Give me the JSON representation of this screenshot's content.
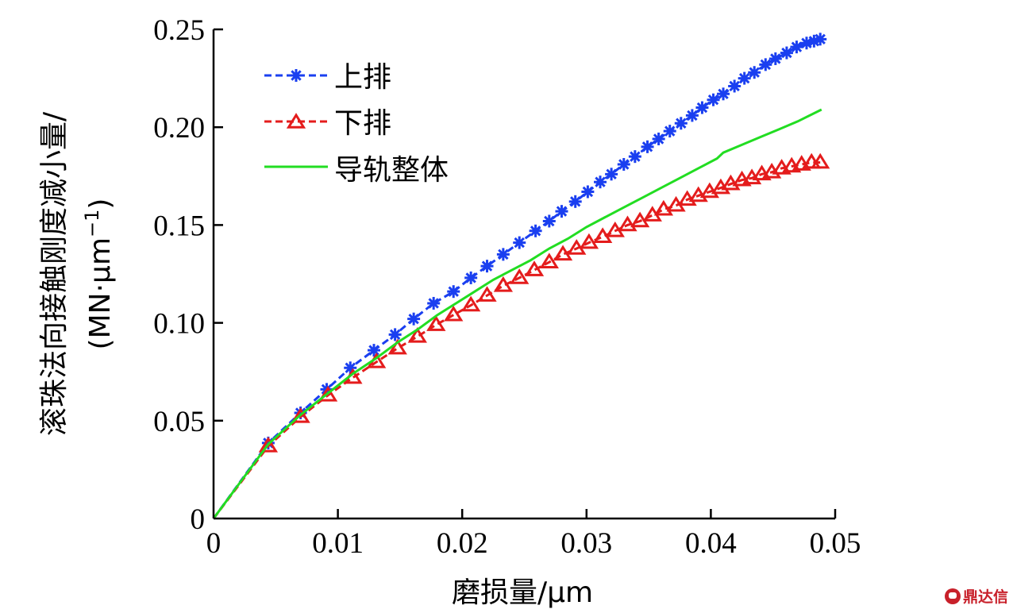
{
  "chart_data": {
    "type": "line",
    "title": "",
    "xlabel": "磨损量/μm",
    "ylabel_line1": "滚珠法向接触刚度减小量/",
    "ylabel_line2_prefix": "(MN·μm",
    "ylabel_line2_sup": "−1",
    "ylabel_line2_suffix": ")",
    "xlim": [
      0,
      0.05
    ],
    "ylim": [
      0,
      0.25
    ],
    "x_ticks": [
      0,
      0.01,
      0.02,
      0.03,
      0.04,
      0.05
    ],
    "x_tick_labels": [
      "0",
      "0.01",
      "0.02",
      "0.03",
      "0.04",
      "0.05"
    ],
    "y_ticks": [
      0,
      0.05,
      0.1,
      0.15,
      0.2,
      0.25
    ],
    "y_tick_labels": [
      "0",
      "0.05",
      "0.10",
      "0.15",
      "0.20",
      "0.25"
    ],
    "grid": false,
    "legend_position": "top-left",
    "series": [
      {
        "name": "上排",
        "color": "#1a3ff0",
        "line_style": "dashed",
        "marker": "asterisk",
        "x": [
          0,
          0.0044,
          0.007,
          0.0091,
          0.011,
          0.0129,
          0.0146,
          0.0161,
          0.0177,
          0.0193,
          0.0207,
          0.022,
          0.0233,
          0.0246,
          0.0259,
          0.027,
          0.028,
          0.0291,
          0.0301,
          0.0311,
          0.032,
          0.033,
          0.0339,
          0.0349,
          0.0358,
          0.0367,
          0.0376,
          0.0385,
          0.0393,
          0.0402,
          0.041,
          0.0419,
          0.0427,
          0.0435,
          0.0444,
          0.0452,
          0.0461,
          0.0469,
          0.0477,
          0.0483,
          0.0488
        ],
        "y": [
          0,
          0.0386,
          0.054,
          0.066,
          0.077,
          0.086,
          0.094,
          0.102,
          0.11,
          0.116,
          0.123,
          0.129,
          0.135,
          0.141,
          0.147,
          0.152,
          0.157,
          0.162,
          0.167,
          0.172,
          0.176,
          0.181,
          0.185,
          0.19,
          0.194,
          0.198,
          0.202,
          0.206,
          0.21,
          0.214,
          0.217,
          0.221,
          0.225,
          0.228,
          0.232,
          0.235,
          0.238,
          0.241,
          0.243,
          0.244,
          0.245
        ]
      },
      {
        "name": "下排",
        "color": "#e41c1c",
        "line_style": "dashed",
        "marker": "triangle",
        "x": [
          0,
          0.0044,
          0.007,
          0.0092,
          0.0112,
          0.0131,
          0.0148,
          0.0164,
          0.0179,
          0.0193,
          0.0207,
          0.022,
          0.0233,
          0.0246,
          0.0258,
          0.027,
          0.0281,
          0.0292,
          0.0302,
          0.0313,
          0.0323,
          0.0333,
          0.0343,
          0.0353,
          0.0362,
          0.0372,
          0.0381,
          0.039,
          0.0399,
          0.0408,
          0.0416,
          0.0425,
          0.0433,
          0.0441,
          0.0449,
          0.0457,
          0.0465,
          0.0473,
          0.0481,
          0.0488
        ],
        "y": [
          0,
          0.037,
          0.052,
          0.063,
          0.072,
          0.08,
          0.087,
          0.093,
          0.099,
          0.104,
          0.109,
          0.114,
          0.119,
          0.123,
          0.127,
          0.131,
          0.135,
          0.138,
          0.141,
          0.144,
          0.147,
          0.15,
          0.152,
          0.155,
          0.158,
          0.16,
          0.163,
          0.165,
          0.167,
          0.169,
          0.171,
          0.173,
          0.174,
          0.176,
          0.177,
          0.179,
          0.18,
          0.181,
          0.182,
          0.182
        ]
      },
      {
        "name": "导轨整体",
        "color": "#22dd22",
        "line_style": "solid",
        "marker": "none",
        "x": [
          0,
          0.0044,
          0.007,
          0.0092,
          0.0112,
          0.0131,
          0.0148,
          0.0165,
          0.018,
          0.0195,
          0.021,
          0.0225,
          0.024,
          0.0255,
          0.027,
          0.0285,
          0.03,
          0.0315,
          0.033,
          0.0345,
          0.036,
          0.0375,
          0.039,
          0.0405,
          0.041,
          0.0425,
          0.044,
          0.0455,
          0.047,
          0.0489
        ],
        "y": [
          0,
          0.038,
          0.053,
          0.064,
          0.074,
          0.082,
          0.09,
          0.097,
          0.104,
          0.11,
          0.116,
          0.122,
          0.127,
          0.132,
          0.138,
          0.143,
          0.149,
          0.154,
          0.159,
          0.164,
          0.169,
          0.174,
          0.179,
          0.184,
          0.187,
          0.191,
          0.195,
          0.199,
          0.203,
          0.209
        ]
      }
    ]
  },
  "watermark": {
    "text": "鼎达信"
  }
}
